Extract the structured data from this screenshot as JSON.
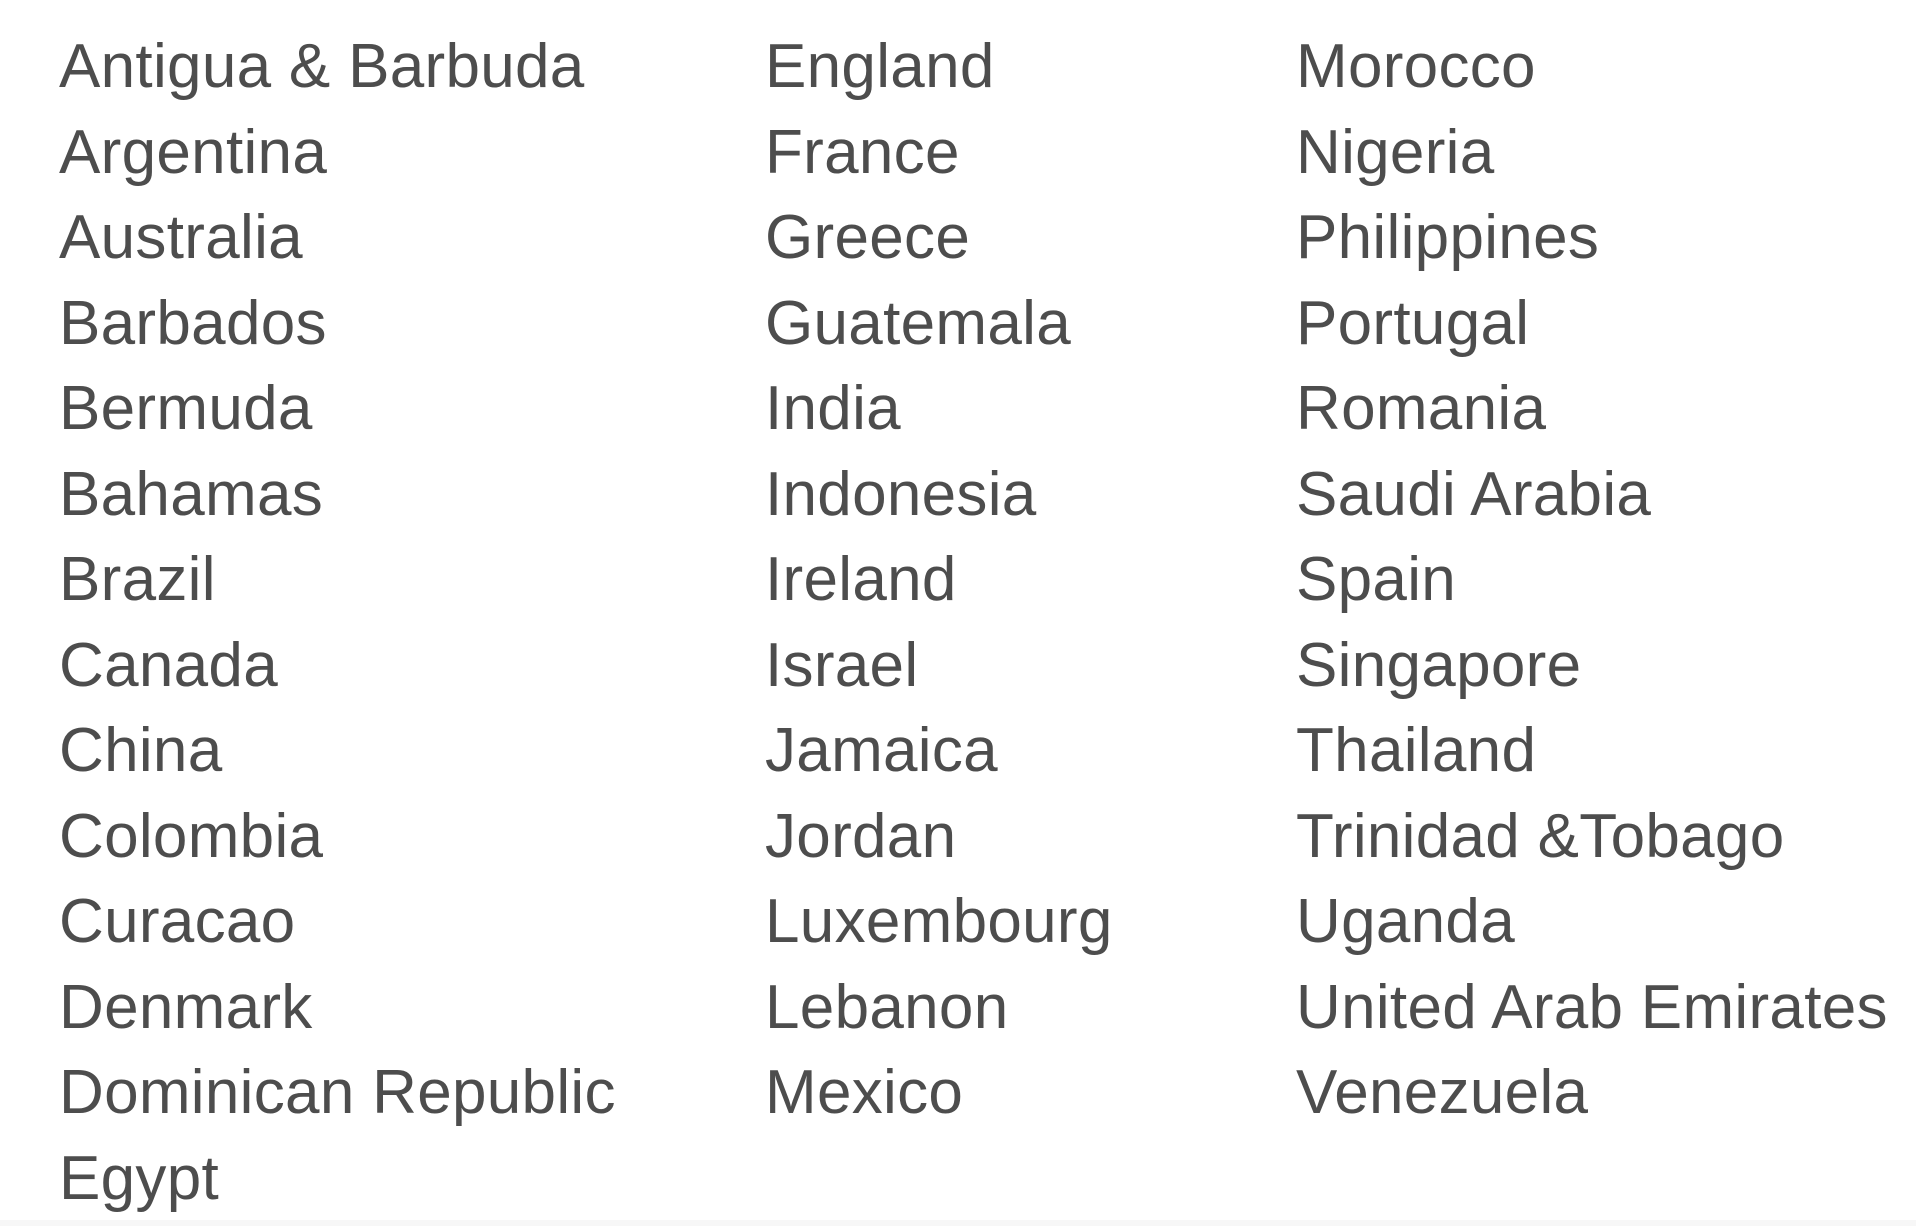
{
  "countries": {
    "columns": [
      [
        "Antigua & Barbuda",
        "Argentina",
        "Australia",
        "Barbados",
        "Bermuda",
        "Bahamas",
        "Brazil",
        "Canada",
        "China",
        "Colombia",
        "Curacao",
        "Denmark",
        "Dominican Republic",
        "Egypt"
      ],
      [
        "England",
        "France",
        "Greece",
        "Guatemala",
        "India",
        "Indonesia",
        "Ireland",
        "Israel",
        "Jamaica",
        "Jordan",
        "Luxembourg",
        "Lebanon",
        "Mexico"
      ],
      [
        "Morocco",
        "Nigeria",
        "Philippines",
        "Portugal",
        "Romania",
        "Saudi Arabia",
        "Spain",
        "Singapore",
        "Thailand",
        "Trinidad &Tobago",
        "Uganda",
        "United Arab Emirates",
        "Venezuela"
      ]
    ]
  },
  "colors": {
    "text": "#4d4d4d",
    "background": "#ffffff",
    "footer_strip": "#f7f7f7"
  }
}
